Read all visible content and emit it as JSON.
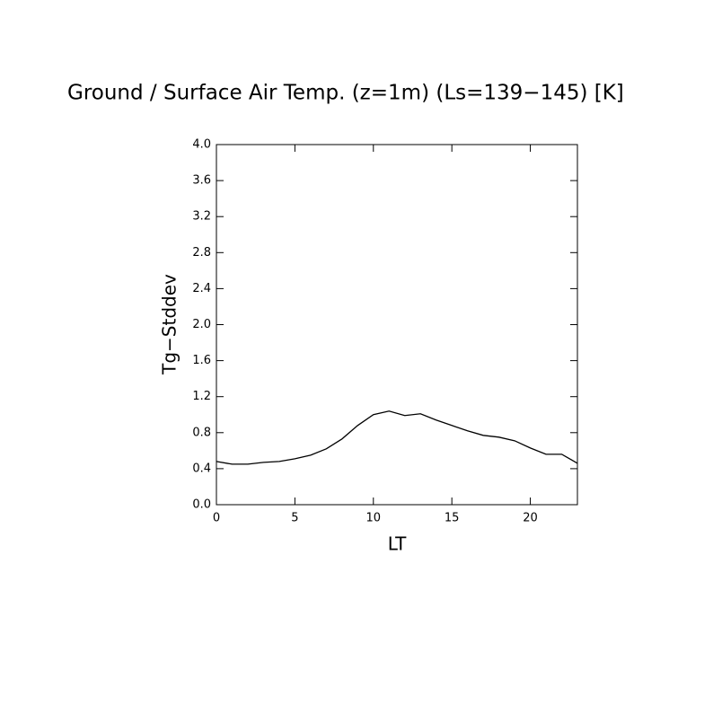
{
  "chart_data": {
    "type": "line",
    "title": "Ground / Surface Air Temp. (z=1m) (Ls=139−145) [K]",
    "x_label": "LT",
    "y_label": "Tg−Stddev",
    "x": [
      0,
      1,
      2,
      3,
      4,
      5,
      6,
      7,
      8,
      9,
      10,
      11,
      12,
      13,
      14,
      15,
      16,
      17,
      18,
      19,
      20,
      21,
      22,
      23
    ],
    "series": [
      {
        "color": "#000000",
        "values": [
          0.48,
          0.45,
          0.45,
          0.47,
          0.48,
          0.51,
          0.55,
          0.62,
          0.73,
          0.88,
          1.0,
          1.04,
          0.99,
          1.01,
          0.94,
          0.88,
          0.82,
          0.77,
          0.75,
          0.71,
          0.63,
          0.56,
          0.56,
          0.46
        ]
      }
    ],
    "xlim": [
      0,
      23
    ],
    "xticks": [
      0,
      5,
      10,
      15,
      20
    ],
    "ylim": [
      0,
      4
    ],
    "yticks": [
      {
        "value": 0,
        "label": "0.0"
      },
      0.4,
      0.8,
      1.2,
      1.6,
      {
        "value": 2,
        "label": "2.0"
      },
      2.4,
      2.8,
      3.2,
      3.6,
      {
        "value": 4,
        "label": "4.0"
      }
    ]
  }
}
